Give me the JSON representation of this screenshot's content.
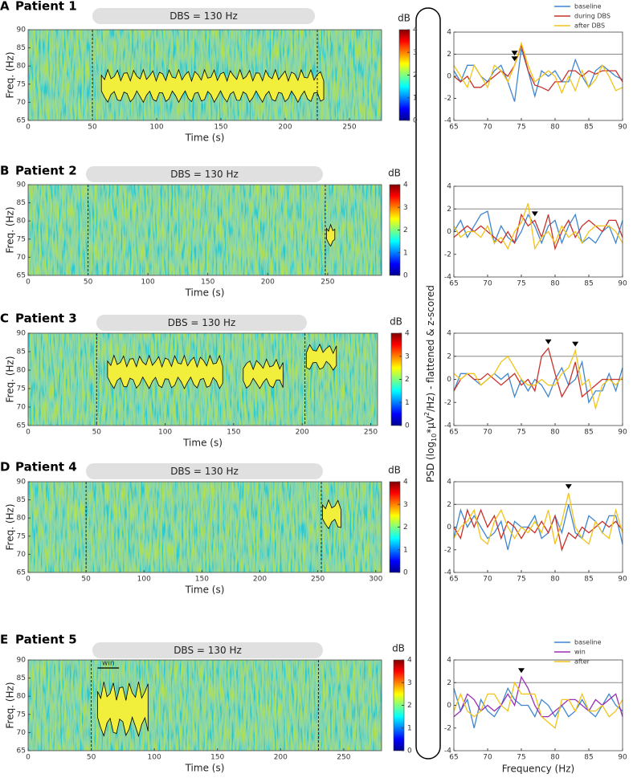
{
  "chart_data": [
    {
      "type": "spectrogram",
      "panel": "A",
      "title": "Patient 1",
      "annotation": "DBS = 130 Hz",
      "xlabel": "Time (s)",
      "ylabel": "Freq. (Hz)",
      "xlim": [
        0,
        275
      ],
      "xticks": [
        0,
        50,
        100,
        150,
        200,
        250
      ],
      "ylim": [
        65,
        90
      ],
      "yticks": [
        65,
        70,
        75,
        80,
        85,
        90
      ],
      "dbs_markers": [
        50,
        225
      ],
      "clusters": [
        {
          "x": [
            57,
            230
          ],
          "y": [
            70,
            79
          ]
        }
      ],
      "colorbar": {
        "label": "dB",
        "lim": [
          0,
          4
        ],
        "ticks": [
          0,
          1,
          2,
          3,
          4
        ]
      }
    },
    {
      "type": "spectrogram",
      "panel": "B",
      "title": "Patient 2",
      "annotation": "DBS = 130 Hz",
      "xlabel": "Time (s)",
      "ylabel": "Freq. (Hz)",
      "xlim": [
        0,
        295
      ],
      "xticks": [
        0,
        50,
        100,
        150,
        200,
        250
      ],
      "ylim": [
        65,
        90
      ],
      "yticks": [
        65,
        70,
        75,
        80,
        85,
        90
      ],
      "dbs_markers": [
        50,
        248
      ],
      "clusters": [
        {
          "x": [
            249,
            256
          ],
          "y": [
            73,
            79
          ]
        }
      ],
      "colorbar": {
        "label": "dB",
        "lim": [
          0,
          4
        ],
        "ticks": [
          0,
          1,
          2,
          3,
          4
        ]
      }
    },
    {
      "type": "spectrogram",
      "panel": "C",
      "title": "Patient 3",
      "annotation": "DBS = 130 Hz",
      "xlabel": "Time (s)",
      "ylabel": "Freq. (Hz)",
      "xlim": [
        0,
        255
      ],
      "xticks": [
        0,
        50,
        100,
        150,
        200,
        250
      ],
      "ylim": [
        65,
        90
      ],
      "yticks": [
        65,
        70,
        75,
        80,
        85,
        90
      ],
      "dbs_markers": [
        50,
        202
      ],
      "clusters": [
        {
          "x": [
            58,
            142
          ],
          "y": [
            75,
            84
          ]
        },
        {
          "x": [
            157,
            186
          ],
          "y": [
            75,
            83
          ]
        },
        {
          "x": [
            203,
            225
          ],
          "y": [
            80,
            87
          ]
        }
      ],
      "colorbar": {
        "label": "dB",
        "lim": [
          0,
          4
        ],
        "ticks": [
          0,
          1,
          2,
          3,
          4
        ]
      }
    },
    {
      "type": "spectrogram",
      "panel": "D",
      "title": "Patient 4",
      "annotation": "DBS = 130 Hz",
      "xlabel": "Time (s)",
      "ylabel": "Freq. (Hz)",
      "xlim": [
        0,
        305
      ],
      "xticks": [
        0,
        50,
        100,
        150,
        200,
        250,
        300
      ],
      "ylim": [
        65,
        90
      ],
      "yticks": [
        65,
        70,
        75,
        80,
        85,
        90
      ],
      "dbs_markers": [
        50,
        253
      ],
      "clusters": [
        {
          "x": [
            254,
            270
          ],
          "y": [
            77,
            85
          ]
        }
      ],
      "colorbar": {
        "label": "dB",
        "lim": [
          0,
          4
        ],
        "ticks": [
          0,
          1,
          2,
          3,
          4
        ]
      }
    },
    {
      "type": "spectrogram",
      "panel": "E",
      "title": "Patient 5",
      "annotation": "DBS = 130 Hz",
      "xlabel": "Time (s)",
      "ylabel": "Freq. (Hz)",
      "xlim": [
        0,
        280
      ],
      "xticks": [
        0,
        50,
        100,
        150,
        200,
        250
      ],
      "ylim": [
        65,
        90
      ],
      "yticks": [
        65,
        70,
        75,
        80,
        85,
        90
      ],
      "dbs_markers": [
        50,
        230
      ],
      "clusters": [
        {
          "x": [
            55,
            95
          ],
          "y": [
            69,
            84
          ]
        }
      ],
      "window": {
        "text": "win",
        "x": [
          55,
          72
        ]
      },
      "colorbar": {
        "label": "dB",
        "lim": [
          0,
          4
        ],
        "ticks": [
          0,
          1,
          2,
          3,
          4
        ]
      }
    },
    {
      "type": "line",
      "x": [
        65,
        66,
        67,
        68,
        69,
        70,
        71,
        72,
        73,
        74,
        75,
        76,
        77,
        78,
        79,
        80,
        81,
        82,
        83,
        84,
        85,
        86,
        87,
        88,
        89,
        90
      ],
      "xlim": [
        65,
        90
      ],
      "xticks": [
        65,
        70,
        75,
        80,
        85,
        90
      ],
      "ylim": [
        -4,
        4
      ],
      "yticks": [
        -4,
        -2,
        0,
        2,
        4
      ],
      "hline": 2,
      "peaks": [
        74,
        74
      ],
      "legend": "upper right",
      "series": [
        {
          "name": "baseline",
          "color": "#3f86d0",
          "values": [
            0.5,
            -0.5,
            1,
            1,
            0,
            -0.5,
            0.5,
            1,
            -0.5,
            -2.3,
            2.5,
            0.5,
            -1.8,
            0.5,
            0,
            0.5,
            -0.5,
            -0.5,
            1.5,
            0,
            -1,
            0.5,
            1,
            0.5,
            0,
            -0.3
          ]
        },
        {
          "name": "during DBS",
          "color": "#c8312a",
          "values": [
            0,
            -0.5,
            0,
            -1,
            -1,
            -0.5,
            0,
            0.5,
            0,
            1,
            2.8,
            0.5,
            -0.8,
            -1,
            -1.3,
            -0.5,
            -0.5,
            0.5,
            0.5,
            0,
            0.5,
            0.2,
            0.5,
            0.5,
            0.5,
            -0.5
          ]
        },
        {
          "name": "after DBS",
          "color": "#f0c419",
          "values": [
            1,
            0,
            -1,
            1,
            0,
            -1,
            1,
            0.5,
            -0.5,
            1,
            3,
            1,
            -0.5,
            0,
            0.5,
            0,
            -1.5,
            0,
            -1.3,
            0.5,
            -1,
            -0.3,
            1,
            0,
            -1.3,
            -1
          ]
        }
      ]
    },
    {
      "type": "line",
      "x": [
        65,
        66,
        67,
        68,
        69,
        70,
        71,
        72,
        73,
        74,
        75,
        76,
        77,
        78,
        79,
        80,
        81,
        82,
        83,
        84,
        85,
        86,
        87,
        88,
        89,
        90
      ],
      "xlim": [
        65,
        90
      ],
      "xticks": [
        65,
        70,
        75,
        80,
        85,
        90
      ],
      "ylim": [
        -4,
        4
      ],
      "yticks": [
        -4,
        -2,
        0,
        2,
        4
      ],
      "hline": 2,
      "peaks": [
        77
      ],
      "series": [
        {
          "color": "#3f86d0",
          "values": [
            0,
            1,
            -0.5,
            0.5,
            1.5,
            1.8,
            -1,
            0.5,
            -0.5,
            -1,
            0,
            1.5,
            0.5,
            -1,
            0.5,
            1,
            -1,
            0.5,
            1.5,
            -1,
            -0.5,
            -1,
            0,
            0.5,
            -1,
            1
          ]
        },
        {
          "color": "#c8312a",
          "values": [
            -0.5,
            0,
            0.5,
            0,
            0.5,
            0,
            -0.5,
            -1,
            0,
            -1,
            1.5,
            0.5,
            1,
            -0.5,
            1.5,
            -1.5,
            0,
            1,
            -0.5,
            0.5,
            1,
            0.5,
            0,
            1,
            1,
            -0.5
          ]
        },
        {
          "color": "#f0c419",
          "values": [
            0.5,
            -0.5,
            0,
            0,
            -0.5,
            0.5,
            -1,
            -0.5,
            -1.5,
            0,
            0.8,
            2.5,
            -1.5,
            -0.5,
            0,
            -1,
            0.5,
            -0.5,
            0,
            -1,
            0,
            0.5,
            0.5,
            0.5,
            0,
            -1
          ]
        }
      ]
    },
    {
      "type": "line",
      "x": [
        65,
        66,
        67,
        68,
        69,
        70,
        71,
        72,
        73,
        74,
        75,
        76,
        77,
        78,
        79,
        80,
        81,
        82,
        83,
        84,
        85,
        86,
        87,
        88,
        89,
        90
      ],
      "xlim": [
        65,
        90
      ],
      "xticks": [
        65,
        70,
        75,
        80,
        85,
        90
      ],
      "ylim": [
        -4,
        4
      ],
      "yticks": [
        -4,
        -2,
        0,
        2,
        4
      ],
      "hline": 2,
      "peaks": [
        79,
        83
      ],
      "series": [
        {
          "color": "#3f86d0",
          "values": [
            -1,
            0.5,
            0.5,
            0,
            -0.5,
            0,
            0.5,
            0,
            0.5,
            -1.5,
            0,
            -1,
            0,
            -0.5,
            -1.5,
            0,
            1,
            -0.5,
            0,
            1.5,
            -2,
            -1,
            -1,
            0.5,
            -1,
            1
          ]
        },
        {
          "color": "#c8312a",
          "values": [
            -1,
            0,
            0.5,
            0,
            0,
            0.5,
            0,
            -0.5,
            0,
            0.5,
            -0.5,
            0,
            -1,
            2,
            2.7,
            0.5,
            -1.5,
            -0.5,
            1.5,
            -1.5,
            -1,
            -0.5,
            0,
            0,
            0,
            0
          ]
        },
        {
          "color": "#f0c419",
          "values": [
            0.5,
            0,
            0.5,
            0.5,
            -0.5,
            0,
            0.5,
            1.5,
            2,
            1,
            0,
            -0.5,
            -0.5,
            0,
            -0.5,
            -0.5,
            0.5,
            1,
            2.5,
            -0.5,
            0,
            -2.5,
            -0.5,
            0,
            -0.5,
            0.2
          ]
        }
      ]
    },
    {
      "type": "line",
      "x": [
        65,
        66,
        67,
        68,
        69,
        70,
        71,
        72,
        73,
        74,
        75,
        76,
        77,
        78,
        79,
        80,
        81,
        82,
        83,
        84,
        85,
        86,
        87,
        88,
        89,
        90
      ],
      "xlim": [
        65,
        90
      ],
      "xticks": [
        65,
        70,
        75,
        80,
        85,
        90
      ],
      "ylim": [
        -4,
        4
      ],
      "yticks": [
        -4,
        -2,
        0,
        2,
        4
      ],
      "hline": 2,
      "peaks": [
        82
      ],
      "series": [
        {
          "color": "#3f86d0",
          "values": [
            -1,
            1.5,
            0,
            1,
            0,
            -1,
            -0.5,
            0.5,
            -2,
            0.5,
            0,
            0,
            1,
            -1,
            -0.5,
            1,
            -0.5,
            2,
            -0.5,
            -1,
            1,
            0.5,
            -0.5,
            1,
            1,
            -1.5
          ]
        },
        {
          "color": "#c8312a",
          "values": [
            0,
            -1,
            1.5,
            0,
            1.5,
            0,
            1,
            -1,
            0.5,
            0,
            -1,
            0,
            -0.5,
            0.5,
            -0.5,
            1,
            -2,
            -0.5,
            -1,
            0,
            -0.5,
            0,
            0.5,
            0,
            0.5,
            -0.3
          ]
        },
        {
          "color": "#f0c419",
          "values": [
            -1,
            0,
            0.5,
            1.5,
            -1,
            -1.5,
            0.5,
            1.5,
            0,
            -1,
            0,
            -0.5,
            0.5,
            -0.5,
            1.5,
            -1.5,
            0.5,
            3,
            0,
            -1,
            -1.5,
            0.5,
            -0.5,
            -1,
            1.5,
            -0.5
          ]
        }
      ]
    },
    {
      "type": "line",
      "x": [
        65,
        66,
        67,
        68,
        69,
        70,
        71,
        72,
        73,
        74,
        75,
        76,
        77,
        78,
        79,
        80,
        81,
        82,
        83,
        84,
        85,
        86,
        87,
        88,
        89,
        90
      ],
      "xlim": [
        65,
        90
      ],
      "xticks": [
        65,
        70,
        75,
        80,
        85,
        90
      ],
      "ylim": [
        -4,
        4
      ],
      "yticks": [
        -4,
        -2,
        0,
        2,
        4
      ],
      "hline": 2,
      "peaks": [
        75
      ],
      "legend": "upper right",
      "series": [
        {
          "name": "baseline",
          "color": "#3f86d0",
          "values": [
            1.5,
            -0.5,
            0.5,
            -2,
            0.5,
            -0.5,
            -1,
            0,
            1.5,
            0.5,
            0,
            0,
            -1,
            0.5,
            0,
            -1,
            0,
            -1,
            -0.5,
            0.5,
            -0.5,
            -1,
            0,
            1,
            0,
            -0.5
          ]
        },
        {
          "name": "win",
          "color": "#9a2fb5",
          "values": [
            -1,
            -0.5,
            1,
            0.5,
            -0.5,
            0,
            -0.5,
            0,
            1,
            0,
            2.5,
            1.5,
            0,
            -1,
            -1,
            -0.5,
            0,
            0.5,
            0.5,
            0,
            -0.5,
            0.5,
            0,
            0.5,
            1,
            -1
          ]
        },
        {
          "name": "after",
          "color": "#f0c419",
          "values": [
            -0.5,
            1,
            -0.5,
            -1,
            -0.5,
            1,
            1,
            0,
            -0.5,
            2,
            1,
            1,
            1,
            -1,
            -1.5,
            -2,
            0.5,
            0.5,
            -0.5,
            1,
            -0.5,
            -0.5,
            0,
            -1,
            -0.5,
            0.5
          ]
        }
      ]
    }
  ],
  "psd_axis": {
    "ylabel_parts": [
      "PSD (log",
      "10",
      "*µV",
      "2",
      "/Hz) - flattened & z-scored"
    ],
    "xlabel": "Frequency (Hz)"
  }
}
